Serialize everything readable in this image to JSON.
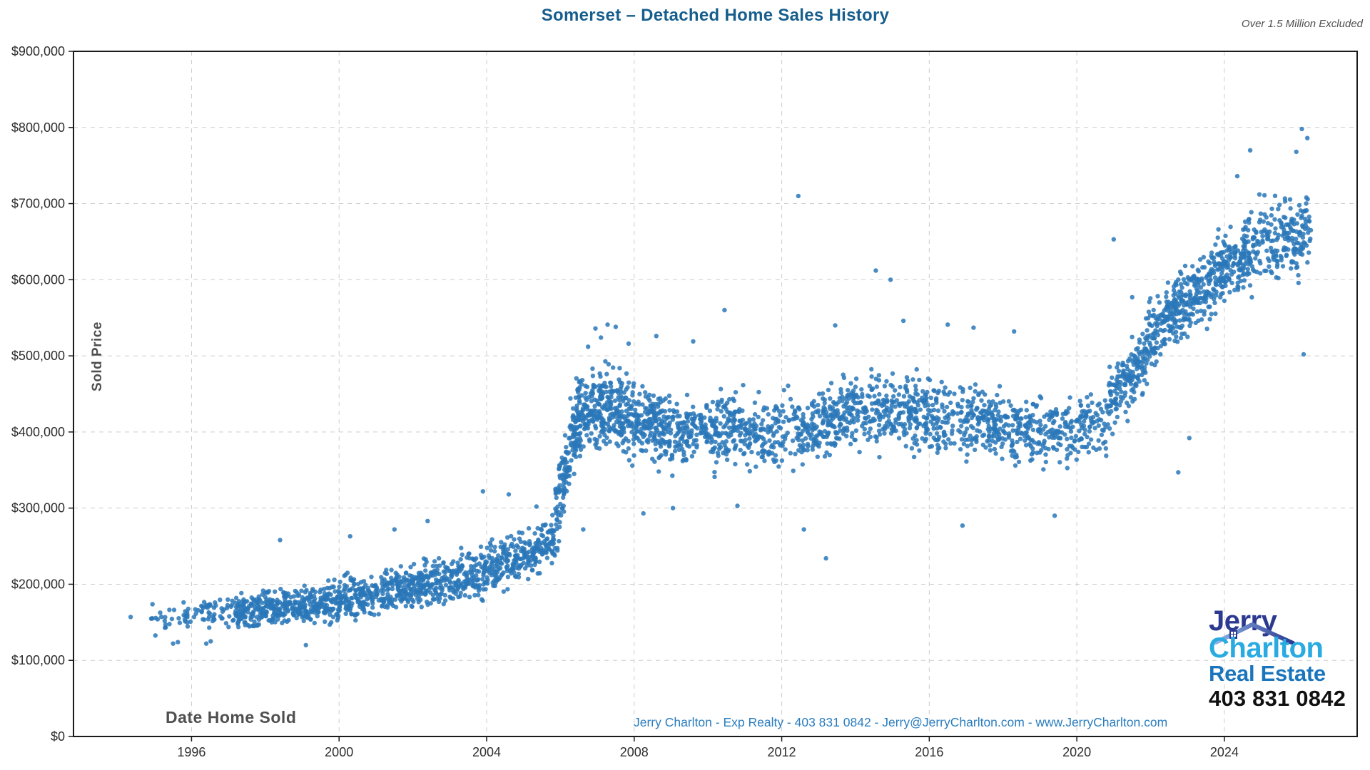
{
  "title": "Somerset – Detached Home Sales History",
  "note": "Over 1.5 Million Excluded",
  "footer": "Jerry Charlton - Exp Realty - 403 831 0842 - Jerry@JerryCharlton.com - www.JerryCharlton.com",
  "logo": {
    "line1": "Jerry",
    "line2": "Charlton",
    "line3": "Real Estate",
    "phone": "403 831 0842"
  },
  "colors": {
    "title": "#175e8c",
    "dot": "#2977b9",
    "grid": "#cdcdcd",
    "spine": "#1a1a1a",
    "tick_label": "#2e2e2e",
    "axis_label": "#4f4f4f",
    "footer": "#2a7dbe",
    "logo_jerry": "#2b3990",
    "logo_charlton": "#29abe2",
    "logo_real_estate": "#1b75bc",
    "logo_phone": "#101010"
  },
  "chart_data": {
    "type": "scatter",
    "title": "Somerset – Detached Home Sales History",
    "xlabel": "Date Home Sold",
    "ylabel": "Sold Price",
    "annotation": "Over 1.5 Million Excluded",
    "grid": true,
    "legend": null,
    "xlim": [
      1992.8,
      2027.6
    ],
    "ylim": [
      0,
      900000
    ],
    "x_tick_values": [
      1996,
      2000,
      2004,
      2008,
      2012,
      2016,
      2020,
      2024
    ],
    "x_tick_labels": [
      "1996",
      "2000",
      "2004",
      "2008",
      "2012",
      "2016",
      "2020",
      "2024"
    ],
    "y_tick_values": [
      0,
      100000,
      200000,
      300000,
      400000,
      500000,
      600000,
      700000,
      800000,
      900000
    ],
    "y_tick_labels": [
      "$0",
      "$100,000",
      "$200,000",
      "$300,000",
      "$400,000",
      "$500,000",
      "$600,000",
      "$700,000",
      "$800,000",
      "$900,000"
    ],
    "series_name": "Detached home sale (date sold vs sold price)",
    "clusters_note": "Each cluster: [year_start, year_end, count, center_price_start, center_price_end, spread]. Prices in dollars, read from chart bands.",
    "clusters": [
      [
        1994.85,
        1995.8,
        22,
        152000,
        158000,
        30000
      ],
      [
        1995.8,
        1997.0,
        55,
        160000,
        164000,
        31000
      ],
      [
        1997.0,
        1998.0,
        115,
        164000,
        168000,
        33000
      ],
      [
        1998.0,
        1999.0,
        135,
        168000,
        172000,
        35000
      ],
      [
        1999.0,
        2000.0,
        135,
        172000,
        178000,
        36000
      ],
      [
        2000.0,
        2001.0,
        135,
        180000,
        187000,
        38000
      ],
      [
        2001.0,
        2002.0,
        135,
        187000,
        196000,
        38000
      ],
      [
        2002.0,
        2003.0,
        135,
        197000,
        207000,
        40000
      ],
      [
        2003.0,
        2004.0,
        135,
        208000,
        218000,
        42000
      ],
      [
        2004.0,
        2005.0,
        135,
        220000,
        235000,
        42000
      ],
      [
        2005.0,
        2005.85,
        115,
        238000,
        258000,
        42000
      ],
      [
        2005.85,
        2006.25,
        80,
        280000,
        370000,
        85000
      ],
      [
        2006.25,
        2006.6,
        90,
        395000,
        420000,
        75000
      ],
      [
        2006.6,
        2007.7,
        225,
        425000,
        432000,
        72000
      ],
      [
        2007.7,
        2009.0,
        225,
        418000,
        402000,
        68000
      ],
      [
        2009.0,
        2011.0,
        255,
        402000,
        406000,
        66000
      ],
      [
        2011.0,
        2013.0,
        215,
        398000,
        402000,
        64000
      ],
      [
        2013.0,
        2014.5,
        195,
        415000,
        430000,
        68000
      ],
      [
        2014.5,
        2016.0,
        195,
        430000,
        424000,
        68000
      ],
      [
        2016.0,
        2018.0,
        235,
        420000,
        408000,
        64000
      ],
      [
        2018.0,
        2019.6,
        170,
        406000,
        396000,
        62000
      ],
      [
        2019.6,
        2020.8,
        110,
        398000,
        408000,
        58000
      ],
      [
        2020.8,
        2021.8,
        145,
        432000,
        495000,
        62000
      ],
      [
        2021.8,
        2022.8,
        170,
        515000,
        565000,
        68000
      ],
      [
        2022.8,
        2023.8,
        160,
        565000,
        600000,
        66000
      ],
      [
        2023.8,
        2024.8,
        170,
        615000,
        640000,
        70000
      ],
      [
        2024.8,
        2026.35,
        195,
        648000,
        658000,
        75000
      ]
    ],
    "outliers_note": "Individually visible points: [year, price].",
    "outliers": [
      [
        1994.35,
        157000
      ],
      [
        1995.5,
        122000
      ],
      [
        1995.63,
        124000
      ],
      [
        1996.4,
        122000
      ],
      [
        1996.52,
        125000
      ],
      [
        1999.1,
        120000
      ],
      [
        1998.4,
        258000
      ],
      [
        2000.3,
        263000
      ],
      [
        2001.5,
        272000
      ],
      [
        2002.4,
        283000
      ],
      [
        2003.9,
        322000
      ],
      [
        2004.6,
        318000
      ],
      [
        2005.35,
        302000
      ],
      [
        2006.62,
        272000
      ],
      [
        2006.75,
        512000
      ],
      [
        2006.95,
        536000
      ],
      [
        2007.1,
        524000
      ],
      [
        2007.28,
        541000
      ],
      [
        2007.5,
        538000
      ],
      [
        2007.85,
        516000
      ],
      [
        2008.6,
        526000
      ],
      [
        2009.6,
        519000
      ],
      [
        2010.45,
        560000
      ],
      [
        2008.25,
        293000
      ],
      [
        2009.05,
        300000
      ],
      [
        2010.8,
        303000
      ],
      [
        2012.45,
        710000
      ],
      [
        2012.6,
        272000
      ],
      [
        2013.2,
        234000
      ],
      [
        2013.45,
        540000
      ],
      [
        2014.55,
        612000
      ],
      [
        2014.95,
        600000
      ],
      [
        2015.3,
        546000
      ],
      [
        2016.5,
        541000
      ],
      [
        2017.2,
        537000
      ],
      [
        2018.3,
        532000
      ],
      [
        2016.9,
        277000
      ],
      [
        2019.4,
        290000
      ],
      [
        2021.0,
        653000
      ],
      [
        2021.5,
        577000
      ],
      [
        2022.75,
        347000
      ],
      [
        2023.05,
        392000
      ],
      [
        2024.35,
        736000
      ],
      [
        2024.7,
        770000
      ],
      [
        2024.95,
        712000
      ],
      [
        2025.95,
        768000
      ],
      [
        2026.1,
        798000
      ],
      [
        2026.25,
        786000
      ],
      [
        2026.15,
        502000
      ]
    ]
  }
}
